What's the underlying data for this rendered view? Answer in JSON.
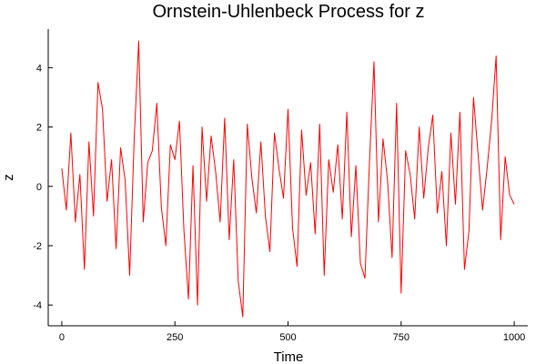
{
  "chart_data": {
    "type": "line",
    "title": "Ornstein-Uhlenbeck Process for z",
    "xlabel": "Time",
    "ylabel": "z",
    "xlim": [
      -30,
      1030
    ],
    "ylim": [
      -4.7,
      5.3
    ],
    "xticks": [
      0,
      250,
      500,
      750,
      1000
    ],
    "xtick_labels": [
      "0",
      "250",
      "500",
      "750",
      "1000"
    ],
    "yticks": [
      -4,
      -2,
      0,
      2,
      4
    ],
    "ytick_labels": [
      "-4",
      "-2",
      "0",
      "2",
      "4"
    ],
    "grid": false,
    "legend": "none",
    "series": [
      {
        "color": "#ff0000",
        "x": [
          0,
          10,
          20,
          30,
          40,
          50,
          60,
          70,
          80,
          90,
          100,
          110,
          120,
          130,
          140,
          150,
          160,
          170,
          180,
          190,
          200,
          210,
          220,
          230,
          240,
          250,
          260,
          270,
          280,
          290,
          300,
          310,
          320,
          330,
          340,
          350,
          360,
          370,
          380,
          390,
          400,
          410,
          420,
          430,
          440,
          450,
          460,
          470,
          480,
          490,
          500,
          510,
          520,
          530,
          540,
          550,
          560,
          570,
          580,
          590,
          600,
          610,
          620,
          630,
          640,
          650,
          660,
          670,
          680,
          690,
          700,
          710,
          720,
          730,
          740,
          750,
          760,
          770,
          780,
          790,
          800,
          810,
          820,
          830,
          840,
          850,
          860,
          870,
          880,
          890,
          900,
          910,
          920,
          930,
          940,
          950,
          960,
          970,
          980,
          990,
          1000
        ],
        "y": [
          0.6,
          -0.8,
          1.8,
          -1.2,
          0.4,
          -2.8,
          1.5,
          -1.0,
          3.5,
          2.6,
          -0.5,
          0.9,
          -2.1,
          1.3,
          0.2,
          -3.0,
          1.6,
          4.9,
          -1.2,
          0.8,
          1.2,
          2.8,
          -0.7,
          -2.0,
          1.4,
          0.9,
          2.2,
          -1.5,
          -3.8,
          0.7,
          -4.0,
          2.0,
          -0.5,
          1.7,
          0.5,
          -1.2,
          2.3,
          -1.8,
          0.9,
          -3.2,
          -4.4,
          2.1,
          0.3,
          -0.9,
          1.5,
          -1.0,
          -2.2,
          1.8,
          0.6,
          -0.4,
          2.6,
          -1.4,
          -2.7,
          1.9,
          -0.3,
          0.8,
          -1.6,
          2.1,
          -3.0,
          0.9,
          -0.2,
          1.4,
          -1.1,
          2.5,
          -1.7,
          0.7,
          -2.6,
          -3.1,
          0.8,
          4.2,
          -1.2,
          1.6,
          0.2,
          -2.4,
          2.8,
          -3.6,
          1.2,
          0.4,
          -1.1,
          2.0,
          -0.4,
          1.3,
          2.4,
          -0.9,
          0.5,
          -2.0,
          1.8,
          -0.6,
          2.5,
          -2.8,
          -1.5,
          3.0,
          1.1,
          -0.8,
          0.6,
          2.2,
          4.4,
          -1.8,
          1.0,
          -0.3,
          -0.6
        ]
      }
    ]
  }
}
